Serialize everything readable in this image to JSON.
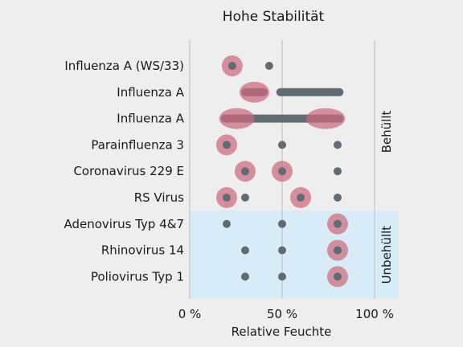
{
  "chart_data": {
    "type": "scatter",
    "title": "Hohe Stabilität",
    "xlabel": "Relative Feuchte",
    "xlim": [
      0,
      100
    ],
    "x_ticks": [
      {
        "value": 0,
        "label": "0 %"
      },
      {
        "value": 50,
        "label": "50 %"
      },
      {
        "value": 100,
        "label": "100 %"
      }
    ],
    "grid": "vertical",
    "categories": [
      "Influenza A (WS/33)",
      "Influenza A",
      "Influenza A",
      "Parainfluenza 3",
      "Coronavirus 229 E",
      "RS Virus",
      "Adenovirus Typ 4&7",
      "Rhinovirus 14",
      "Poliovirus Typ 1"
    ],
    "groups": [
      {
        "label": "Behüllt",
        "rows": [
          0,
          5
        ],
        "shaded": false
      },
      {
        "label": "Unbehüllt",
        "rows": [
          6,
          8
        ],
        "shaded": true
      }
    ],
    "rows": [
      {
        "points": [
          23,
          43
        ],
        "ranges": [],
        "high_stability": [
          {
            "from": 23,
            "to": 23
          }
        ]
      },
      {
        "points": [],
        "ranges": [
          [
            30,
            40
          ],
          [
            49,
            81
          ]
        ],
        "high_stability": [
          {
            "from": 30,
            "to": 40
          }
        ]
      },
      {
        "points": [],
        "ranges": [
          [
            19,
            81
          ]
        ],
        "high_stability": [
          {
            "from": 19,
            "to": 32
          },
          {
            "from": 66,
            "to": 81
          }
        ]
      },
      {
        "points": [
          20,
          50,
          80
        ],
        "ranges": [],
        "high_stability": [
          {
            "from": 20,
            "to": 20
          }
        ]
      },
      {
        "points": [
          30,
          50,
          80
        ],
        "ranges": [],
        "high_stability": [
          {
            "from": 30,
            "to": 30
          },
          {
            "from": 50,
            "to": 50
          }
        ]
      },
      {
        "points": [
          20,
          30,
          60,
          80
        ],
        "ranges": [],
        "high_stability": [
          {
            "from": 20,
            "to": 20
          },
          {
            "from": 60,
            "to": 60
          }
        ]
      },
      {
        "points": [
          20,
          50,
          80
        ],
        "ranges": [],
        "high_stability": [
          {
            "from": 80,
            "to": 80
          }
        ]
      },
      {
        "points": [
          30,
          50,
          80
        ],
        "ranges": [],
        "high_stability": [
          {
            "from": 80,
            "to": 80
          }
        ]
      },
      {
        "points": [
          30,
          50,
          80
        ],
        "ranges": [],
        "high_stability": [
          {
            "from": 80,
            "to": 80
          }
        ]
      }
    ],
    "colors": {
      "background": "#eeeeee",
      "shaded_band": "#d8ecf8",
      "point": "#606b72",
      "highlight": "#cd6a7d",
      "grid": "#bcbcbc"
    }
  }
}
